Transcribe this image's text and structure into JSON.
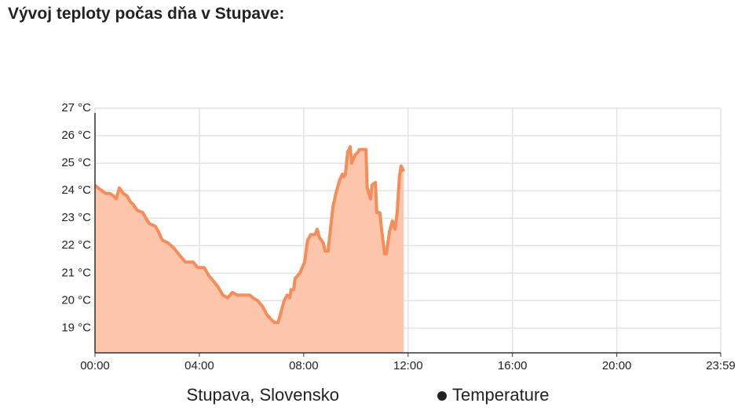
{
  "chart_data": {
    "type": "area",
    "title": "Vývoj teploty počas dňa v Stupave:",
    "subtitle": "Stupava, Slovensko",
    "x": [
      "00:00",
      "00:07",
      "00:16",
      "00:25",
      "00:34",
      "00:43",
      "00:49",
      "00:56",
      "01:05",
      "01:14",
      "01:21",
      "01:28",
      "01:36",
      "01:50",
      "01:57",
      "02:05",
      "02:19",
      "02:26",
      "02:35",
      "02:48",
      "03:02",
      "03:17",
      "03:28",
      "03:46",
      "03:56",
      "04:11",
      "04:22",
      "04:33",
      "04:43",
      "04:54",
      "05:05",
      "05:16",
      "05:27",
      "05:41",
      "05:56",
      "06:03",
      "06:14",
      "06:25",
      "06:35",
      "06:46",
      "06:53",
      "07:01",
      "07:08",
      "07:15",
      "07:22",
      "07:28",
      "07:31",
      "07:37",
      "07:40",
      "07:51",
      "08:02",
      "08:09",
      "08:16",
      "08:26",
      "08:31",
      "08:36",
      "08:45",
      "08:49",
      "08:56",
      "09:03",
      "09:07",
      "09:14",
      "09:23",
      "09:29",
      "09:32",
      "09:36",
      "09:41",
      "09:47",
      "09:50",
      "09:58",
      "10:05",
      "10:08",
      "10:16",
      "10:23",
      "10:26",
      "10:34",
      "10:37",
      "10:45",
      "10:48",
      "10:55",
      "10:59",
      "11:06",
      "11:10",
      "11:17",
      "11:24",
      "11:30",
      "11:35",
      "11:40",
      "11:44",
      "11:50"
    ],
    "series": [
      {
        "name": "Temperature",
        "color": "#f58d5b",
        "fill": "#fdc5ac",
        "values": [
          24.2,
          24.1,
          24.0,
          23.9,
          23.9,
          23.8,
          23.7,
          24.1,
          23.9,
          23.8,
          23.6,
          23.5,
          23.3,
          23.2,
          23.0,
          22.8,
          22.7,
          22.5,
          22.2,
          22.1,
          21.9,
          21.6,
          21.4,
          21.4,
          21.2,
          21.2,
          20.9,
          20.7,
          20.5,
          20.2,
          20.1,
          20.3,
          20.2,
          20.2,
          20.2,
          20.1,
          20.0,
          19.8,
          19.5,
          19.3,
          19.2,
          19.2,
          19.6,
          20.0,
          20.2,
          20.1,
          20.4,
          20.4,
          20.8,
          21.0,
          21.4,
          22.2,
          22.4,
          22.4,
          22.6,
          22.3,
          22.1,
          21.8,
          21.8,
          22.8,
          23.4,
          23.9,
          24.4,
          24.6,
          24.5,
          24.6,
          25.4,
          25.6,
          25.0,
          25.3,
          25.4,
          25.5,
          25.5,
          25.5,
          24.1,
          23.7,
          24.2,
          24.3,
          23.2,
          23.2,
          22.6,
          21.7,
          21.7,
          22.5,
          22.9,
          22.6,
          23.2,
          24.5,
          24.9,
          24.7
        ]
      }
    ],
    "xlim": [
      "00:00",
      "23:59"
    ],
    "xticks": [
      "00:00",
      "04:00",
      "08:00",
      "12:00",
      "16:00",
      "20:00",
      "23:59"
    ],
    "ylim": [
      18.1,
      27
    ],
    "yticks": [
      {
        "value": 19,
        "label": "19 °C"
      },
      {
        "value": 20,
        "label": "20 °C"
      },
      {
        "value": 21,
        "label": "21 °C"
      },
      {
        "value": 22,
        "label": "22 °C"
      },
      {
        "value": 23,
        "label": "23 °C"
      },
      {
        "value": 24,
        "label": "24 °C"
      },
      {
        "value": 25,
        "label": "25 °C"
      },
      {
        "value": 26,
        "label": "26 °C"
      },
      {
        "value": 27,
        "label": "27 °C"
      }
    ],
    "grid": true
  }
}
